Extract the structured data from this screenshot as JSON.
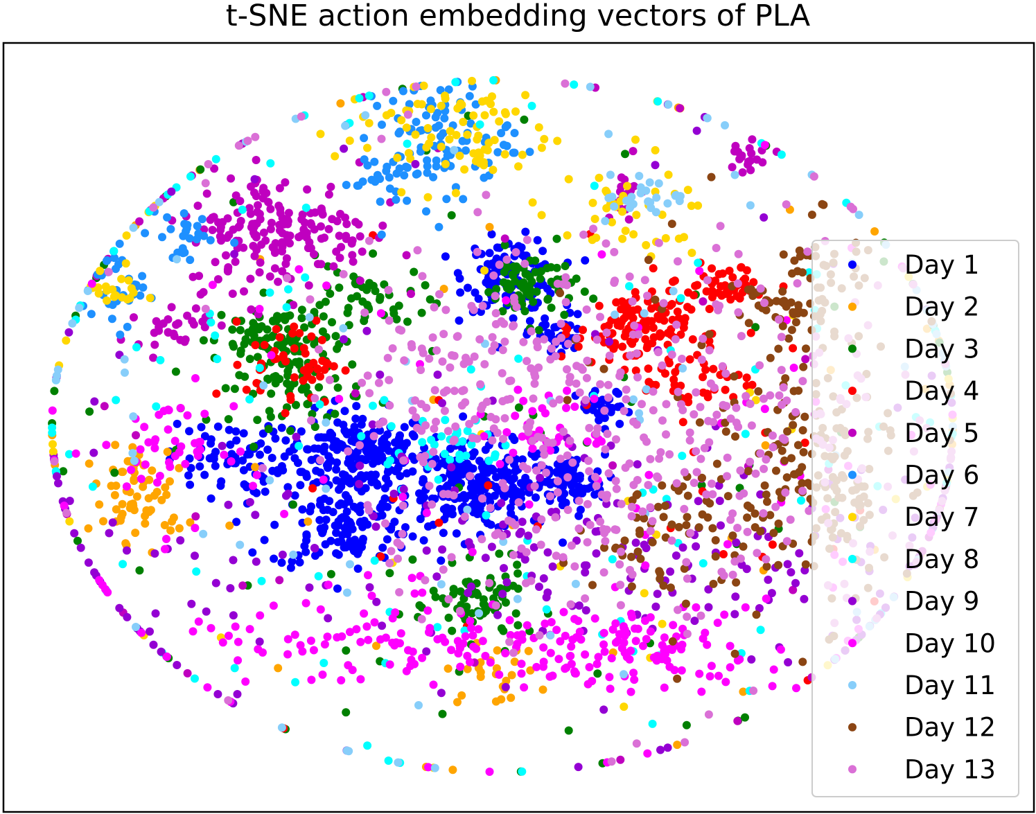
{
  "chart_data": {
    "type": "scatter",
    "title": "t-SNE action embedding vectors of PLA",
    "xlabel": "",
    "ylabel": "",
    "axes_ticks": "none",
    "grid": false,
    "legend_position": "right",
    "series": [
      {
        "name": "Day 1",
        "color": "#0000ff",
        "clusters": [
          [
            -0.31,
            -0.08,
            0.08,
            0.06,
            220
          ],
          [
            -0.05,
            -0.17,
            0.08,
            0.06,
            220
          ],
          [
            0.02,
            0.42,
            0.05,
            0.05,
            120
          ],
          [
            0.14,
            -0.16,
            0.04,
            0.04,
            80
          ],
          [
            -0.34,
            -0.28,
            0.08,
            0.06,
            120
          ],
          [
            -0.6,
            -0.09,
            0.06,
            0.05,
            70
          ],
          [
            0.12,
            0.25,
            0.03,
            0.03,
            40
          ],
          [
            0.22,
            0.04,
            0.03,
            0.03,
            35
          ]
        ]
      },
      {
        "name": "Day 2",
        "color": "#ffa500",
        "clusters": [
          [
            -0.78,
            -0.22,
            0.05,
            0.05,
            45
          ],
          [
            -0.02,
            -0.69,
            0.05,
            0.04,
            25
          ],
          [
            -0.8,
            -0.12,
            0.03,
            0.04,
            20
          ],
          [
            0.2,
            0.0,
            0.9,
            0.6,
            40
          ]
        ]
      },
      {
        "name": "Day 3",
        "color": "#008000",
        "clusters": [
          [
            -0.44,
            0.14,
            0.07,
            0.07,
            90
          ],
          [
            -0.5,
            0.25,
            0.06,
            0.05,
            60
          ],
          [
            0.06,
            0.39,
            0.05,
            0.05,
            70
          ],
          [
            -0.05,
            -0.5,
            0.05,
            0.05,
            70
          ],
          [
            -0.3,
            0.35,
            0.07,
            0.05,
            50
          ],
          [
            0.0,
            0.0,
            0.7,
            0.55,
            80
          ]
        ]
      },
      {
        "name": "Day 4",
        "color": "#ff0000",
        "clusters": [
          [
            0.28,
            0.27,
            0.06,
            0.05,
            110
          ],
          [
            0.48,
            0.39,
            0.06,
            0.03,
            50
          ],
          [
            -0.45,
            0.18,
            0.05,
            0.06,
            50
          ],
          [
            0.42,
            0.13,
            0.06,
            0.05,
            40
          ],
          [
            0.2,
            0.0,
            0.6,
            0.5,
            30
          ]
        ]
      },
      {
        "name": "Day 5",
        "color": "#bf00bf",
        "clusters": [
          [
            -0.48,
            0.54,
            0.1,
            0.08,
            180
          ],
          [
            0.52,
            0.75,
            0.03,
            0.03,
            20
          ],
          [
            0.26,
            0.65,
            0.02,
            0.03,
            15
          ],
          [
            -0.71,
            0.28,
            0.04,
            0.03,
            30
          ],
          [
            0.0,
            0.0,
            0.8,
            0.6,
            40
          ]
        ]
      },
      {
        "name": "Day 6",
        "color": "#1e90ff",
        "clusters": [
          [
            -0.14,
            0.81,
            0.08,
            0.08,
            90
          ],
          [
            -0.83,
            0.38,
            0.04,
            0.05,
            35
          ],
          [
            -0.69,
            0.53,
            0.04,
            0.05,
            25
          ],
          [
            -0.25,
            0.68,
            0.05,
            0.05,
            30
          ]
        ]
      },
      {
        "name": "Day 7",
        "color": "#ffd700",
        "clusters": [
          [
            -0.12,
            0.82,
            0.12,
            0.08,
            80
          ],
          [
            0.25,
            0.58,
            0.1,
            0.06,
            40
          ],
          [
            -0.83,
            0.38,
            0.03,
            0.03,
            20
          ],
          [
            0.2,
            0.0,
            0.8,
            0.6,
            40
          ]
        ]
      },
      {
        "name": "Day 8",
        "color": "#00ffff",
        "clusters": [
          [
            0.0,
            0.1,
            0.75,
            0.55,
            130
          ],
          [
            -0.1,
            -0.05,
            0.05,
            0.05,
            30
          ]
        ]
      },
      {
        "name": "Day 9",
        "color": "#9400d3",
        "clusters": [
          [
            0.0,
            -0.35,
            0.6,
            0.2,
            150
          ],
          [
            0.3,
            -0.4,
            0.2,
            0.1,
            60
          ],
          [
            0.0,
            0.0,
            0.8,
            0.6,
            60
          ]
        ]
      },
      {
        "name": "Day 10",
        "color": "#ff00ff",
        "clusters": [
          [
            -0.05,
            -0.62,
            0.35,
            0.06,
            160
          ],
          [
            0.32,
            -0.6,
            0.15,
            0.06,
            60
          ],
          [
            -0.72,
            -0.05,
            0.06,
            0.05,
            40
          ],
          [
            0.1,
            -0.02,
            0.05,
            0.05,
            30
          ],
          [
            0.0,
            -0.2,
            0.8,
            0.4,
            90
          ]
        ]
      },
      {
        "name": "Day 11",
        "color": "#87cefa",
        "clusters": [
          [
            0.0,
            0.0,
            0.85,
            0.65,
            90
          ],
          [
            0.32,
            0.64,
            0.05,
            0.03,
            25
          ]
        ]
      },
      {
        "name": "Day 12",
        "color": "#8b4513",
        "clusters": [
          [
            0.68,
            -0.15,
            0.08,
            0.18,
            150
          ],
          [
            0.6,
            0.32,
            0.05,
            0.05,
            40
          ],
          [
            0.35,
            -0.3,
            0.08,
            0.08,
            50
          ],
          [
            0.55,
            -0.05,
            0.2,
            0.3,
            60
          ],
          [
            0.7,
            0.45,
            0.06,
            0.03,
            25
          ]
        ]
      },
      {
        "name": "Day 13",
        "color": "#da70d6",
        "clusters": [
          [
            0.2,
            0.05,
            0.28,
            0.25,
            230
          ],
          [
            0.5,
            0.0,
            0.2,
            0.25,
            120
          ],
          [
            -0.1,
            0.15,
            0.15,
            0.12,
            80
          ],
          [
            0.0,
            -0.3,
            0.2,
            0.12,
            50
          ],
          [
            0.0,
            0.0,
            0.8,
            0.6,
            60
          ]
        ]
      }
    ]
  }
}
